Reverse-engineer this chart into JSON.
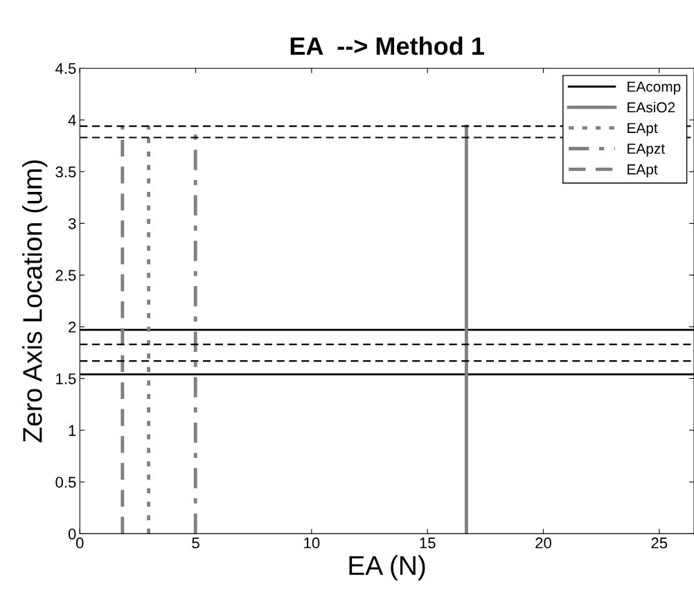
{
  "chart_data": {
    "type": "line",
    "title": "EA  --> Method 1",
    "xlabel": "EA (N)",
    "ylabel": "Zero Axis Location (um)",
    "xlim": [
      0,
      26.5
    ],
    "xticks": [
      0,
      5,
      10,
      15,
      20,
      25
    ],
    "ylim": [
      0,
      4.5
    ],
    "yticks": [
      0,
      0.5,
      1,
      1.5,
      2,
      2.5,
      3,
      3.5,
      4,
      4.5
    ],
    "grid": false,
    "legend": "top right",
    "marker": "none",
    "series": [
      {
        "name": "EAcomp",
        "color": "#000000",
        "line_style": "solid",
        "x": [
          0,
          26.5
        ],
        "values": [
          1.97,
          1.97
        ]
      },
      {
        "color": "#000000",
        "line_style": "solid",
        "x": [
          0,
          26.5
        ],
        "values": [
          1.54,
          1.54
        ]
      },
      {
        "name": "EAsiO2",
        "color": "#808080",
        "line_style": "solid",
        "x": [
          16.68,
          16.68
        ],
        "values": [
          0,
          3.94
        ]
      },
      {
        "name": "EApt",
        "color": "#808080",
        "line_style": "dotted",
        "x": [
          2.97,
          2.97
        ],
        "values": [
          0,
          3.94
        ]
      },
      {
        "name": "EApzt",
        "color": "#808080",
        "line_style": "dashdot",
        "x": [
          4.99,
          4.99
        ],
        "values": [
          0,
          3.94
        ]
      },
      {
        "name": "EApt",
        "color": "#808080",
        "line_style": "dashed",
        "x": [
          1.84,
          1.84
        ],
        "values": [
          0,
          3.94
        ]
      }
    ],
    "ref_lines": [
      {
        "axis": "y",
        "value": 3.94,
        "color": "#000000",
        "line_style": "dashed"
      },
      {
        "axis": "y",
        "value": 3.83,
        "color": "#000000",
        "line_style": "dashed"
      },
      {
        "axis": "y",
        "value": 1.83,
        "color": "#000000",
        "line_style": "dashed"
      },
      {
        "axis": "y",
        "value": 1.67,
        "color": "#000000",
        "line_style": "dashed"
      }
    ]
  }
}
